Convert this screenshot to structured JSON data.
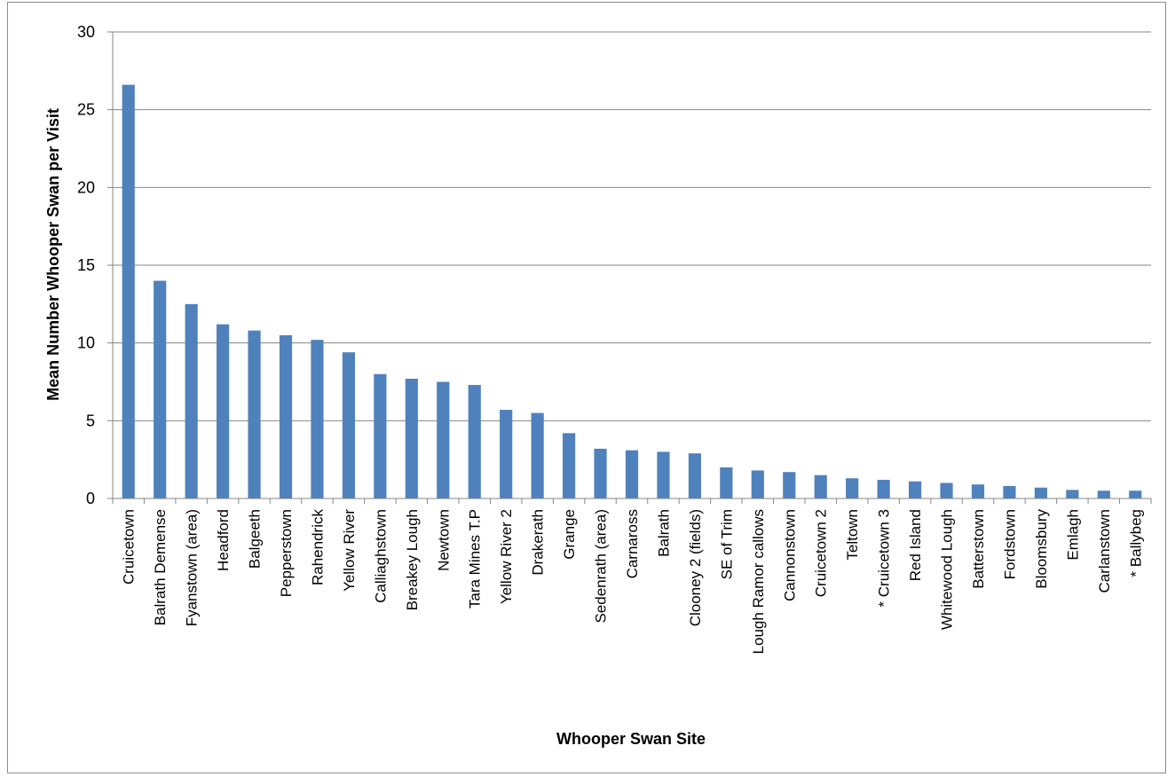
{
  "chart_data": {
    "type": "bar",
    "title": "",
    "xlabel": "Whooper Swan Site",
    "ylabel": "Mean Number Whooper Swan per Visit",
    "ylim": [
      0,
      30
    ],
    "yticks": [
      "0",
      "5",
      "10",
      "15",
      "20",
      "25",
      "30"
    ],
    "grid": true,
    "legend": "none",
    "bar_color": "#4f81bd",
    "categories": [
      "Cruicetown",
      "Balrath Demense",
      "Fyanstown (area)",
      "Headford",
      "Balgeeth",
      "Pepperstown",
      "Rahendrick",
      "Yellow River",
      "Calliaghstown",
      "Breakey Lough",
      "Newtown",
      "Tara Mines T.P",
      "Yellow River 2",
      "Drakerath",
      "Grange",
      "Sedenrath (area)",
      "Carnaross",
      "Balrath",
      "Clooney 2  (fields)",
      "SE of Trim",
      "Lough Ramor callows",
      "Cannonstown",
      "Cruicetown 2",
      "Teltown",
      "* Cruicetown 3",
      "Red Island",
      "Whitewood Lough",
      "Batterstown",
      "Fordstown",
      "Bloomsbury",
      "Emlagh",
      "Carlanstown",
      "* Ballybeg"
    ],
    "values": [
      26.6,
      14.0,
      12.5,
      11.2,
      10.8,
      10.5,
      10.2,
      9.4,
      8.0,
      7.7,
      7.5,
      7.3,
      5.7,
      5.5,
      4.2,
      3.2,
      3.1,
      3.0,
      2.9,
      2.0,
      1.8,
      1.7,
      1.5,
      1.3,
      1.2,
      1.1,
      1.0,
      0.9,
      0.8,
      0.7,
      0.55,
      0.5,
      0.5
    ]
  }
}
